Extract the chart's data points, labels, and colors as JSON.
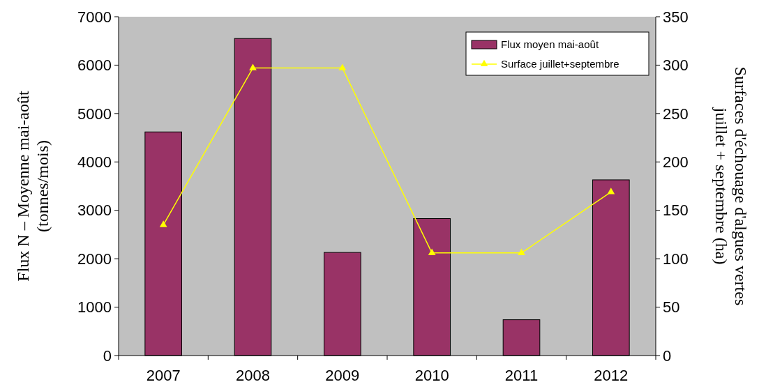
{
  "chart_data": {
    "type": "bar",
    "categories": [
      "2007",
      "2008",
      "2009",
      "2010",
      "2011",
      "2012"
    ],
    "series": [
      {
        "name": "Flux moyen mai-août",
        "color": "#993366",
        "values": [
          4620,
          6550,
          2130,
          2830,
          740,
          3630
        ]
      },
      {
        "name": "Surface juillet+septembre",
        "type": "line",
        "axis": "y2",
        "color": "#ffff00",
        "values": [
          135,
          297,
          297,
          106,
          106,
          169
        ]
      }
    ],
    "ylabel": "Flux N – Moyenne mai-août\n(tonnes/mois)",
    "y2label": "Surfaces d'échouage d'algues vertes\njuillet + septembre (ha)",
    "ylim": [
      0,
      7000
    ],
    "yticks": [
      0,
      1000,
      2000,
      3000,
      4000,
      5000,
      6000,
      7000
    ],
    "y2lim": [
      0,
      350
    ],
    "y2ticks": [
      0,
      50,
      100,
      150,
      200,
      250,
      300,
      350
    ],
    "legend": "top right",
    "marker": "triangle",
    "grid": false
  }
}
